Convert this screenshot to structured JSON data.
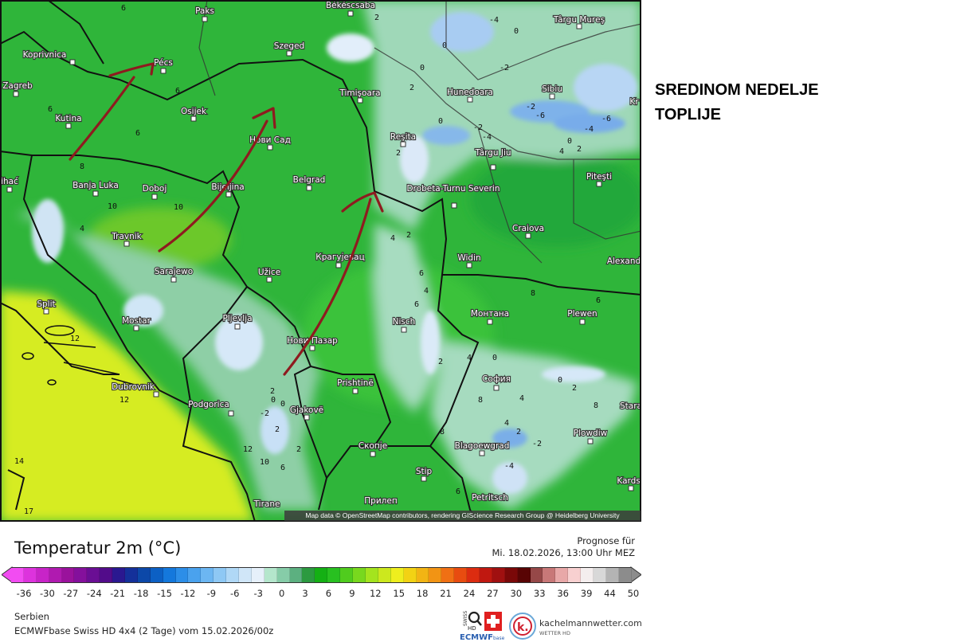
{
  "headline": {
    "line1": "SREDINOM NEDELJE",
    "line2": "TOPLIJE"
  },
  "map": {
    "attribution": "Map data © OpenStreetMap contributors, rendering GIScience Research Group @ Heidelberg University",
    "arrow_color": "#8e1b1f",
    "cities": [
      "Paks",
      "Békéscsaba",
      "Koprivnica",
      "Pécs",
      "Szeged",
      "Zagreb",
      "Timişoara",
      "Hunedoara",
      "Sibiu",
      "Târgu Mureş",
      "Kr",
      "Osijek",
      "Kutina",
      "Нови Сад",
      "Reşita",
      "Târgu Jiu",
      "Piteşti",
      "Banja Luka",
      "Doboj",
      "Bijeljina",
      "Belgrad",
      "Drobeta-Turnu Severin",
      "ihać",
      "Travnik",
      "Craiova",
      "Alexand",
      "Крагујевац",
      "Widin",
      "Sarajewo",
      "Užice",
      "Split",
      "Mostar",
      "Pljevlja",
      "Монтана",
      "Plewen",
      "Nisch",
      "Нови Пазар",
      "Prishtinë",
      "София",
      "Dubrovnik",
      "Stara",
      "Podgorica",
      "Gjakovë",
      "Plowdiw",
      "Скопје",
      "Blagoewgrad",
      "Stip",
      "Kardsc",
      "Petritsch",
      "Прилеп",
      "Tirane"
    ],
    "contour_labels": [
      "6",
      "6",
      "6",
      "6",
      "8",
      "10",
      "10",
      "2",
      "0",
      "2",
      "0",
      "-4",
      "0",
      "-2",
      "0",
      "-2",
      "-4",
      "-6",
      "-2",
      "-4",
      "-6",
      "0",
      "2",
      "4",
      "2",
      "4",
      "6",
      "6",
      "4",
      "2",
      "4",
      "12",
      "12",
      "14",
      "17",
      "2",
      "0",
      "-2",
      "2",
      "0",
      "12",
      "10",
      "6",
      "2",
      "0",
      "4",
      "4",
      "2",
      "0",
      "-4",
      "-2",
      "2",
      "8",
      "6",
      "8",
      "4",
      "2",
      "8",
      "6",
      "8"
    ]
  },
  "legend": {
    "title": "Temperatur 2m (°C)",
    "forecast_label": "Prognose für",
    "forecast_time": "Mi. 18.02.2026, 13:00 Uhr MEZ",
    "ticks": [
      "-36",
      "-30",
      "-27",
      "-24",
      "-21",
      "-18",
      "-15",
      "-12",
      "-9",
      "-6",
      "-3",
      "0",
      "3",
      "6",
      "9",
      "12",
      "15",
      "18",
      "21",
      "24",
      "27",
      "30",
      "33",
      "36",
      "39",
      "44",
      "50"
    ],
    "colors": [
      "#f24cf2",
      "#dd33dd",
      "#c824c8",
      "#b01ab0",
      "#9a129c",
      "#84109c",
      "#6a0e94",
      "#520c8a",
      "#2a1890",
      "#14309a",
      "#0c48a8",
      "#0c60c4",
      "#1478dc",
      "#2c8ee8",
      "#4aa2ee",
      "#6cb6f2",
      "#8ec8f4",
      "#b0d8f6",
      "#d0e6f8",
      "#e6f0fa",
      "#b4e6cc",
      "#86cca8",
      "#5cb080",
      "#2c9a40",
      "#14b014",
      "#28c020",
      "#50cc1e",
      "#78d81e",
      "#a4e41e",
      "#cce81e",
      "#eeee1e",
      "#f2d214",
      "#f2b414",
      "#f29414",
      "#f07014",
      "#e84c10",
      "#dc2c10",
      "#c01810",
      "#a01010",
      "#7a0808",
      "#580404",
      "#964848",
      "#c87878",
      "#e8a8a8",
      "#f8d0d0",
      "#f4eeee",
      "#d8d8d8",
      "#b4b4b4",
      "#8c8c8c"
    ]
  },
  "footer": {
    "region": "Serbien",
    "model": "ECMWFbase Swiss HD 4x4 (2 Tage) vom 15.02.2026/00z",
    "logo_swiss": "SWISS HD",
    "logo_ecmwf": "ECMWFbase",
    "logo_k": "k.",
    "site": "kachelmannwetter.com",
    "site_sub": "WETTER HD"
  }
}
